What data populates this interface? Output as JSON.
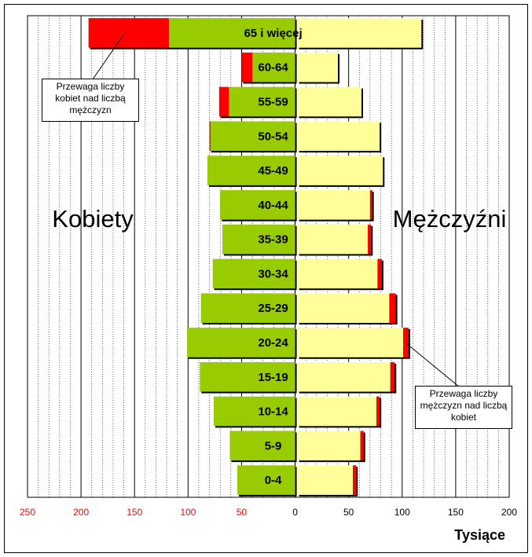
{
  "chart_data": {
    "type": "bar",
    "subtype": "population-pyramid",
    "unit_label": "Tysiące",
    "left_group": "Kobiety",
    "right_group": "Mężczyźni",
    "x_ticks_left": [
      "250",
      "200",
      "150",
      "100",
      "50"
    ],
    "x_ticks_right": [
      "0",
      "50",
      "100",
      "150",
      "200"
    ],
    "xlim": [
      -250,
      200
    ],
    "grid": true,
    "categories": [
      "0-4",
      "5-9",
      "10-14",
      "15-19",
      "20-24",
      "25-29",
      "30-34",
      "35-39",
      "40-44",
      "45-49",
      "50-54",
      "55-59",
      "60-64",
      "65 i więcej"
    ],
    "series": [
      {
        "values": [
          54,
          61,
          76,
          89,
          101,
          88,
          77,
          68,
          70,
          82,
          80,
          71,
          50,
          193
        ]
      },
      {
        "values": [
          57,
          64,
          79,
          93,
          106,
          94,
          81,
          71,
          72,
          82,
          79,
          62,
          40,
          118
        ]
      }
    ],
    "callouts": [
      {
        "text": "Przewaga liczby\nkobiet nad liczbą\nmężczyzn"
      },
      {
        "text": "Przewaga liczby\nmężczyzn nad liczbą\nkobiet"
      }
    ],
    "colors": {
      "women": "#99cc00",
      "men": "#ffff99",
      "excess": "#ff0000",
      "left_tick_text": "#ff0000",
      "right_tick_text": "#000000"
    }
  }
}
